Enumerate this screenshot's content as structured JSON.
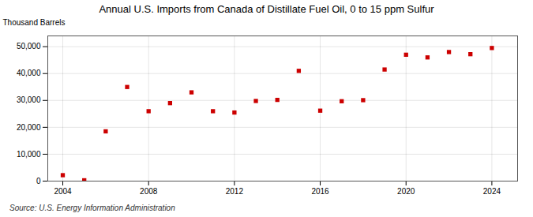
{
  "chart_data": {
    "type": "scatter",
    "title": "Annual U.S. Imports from Canada of Distillate Fuel Oil, 0 to 15 ppm Sulfur",
    "ylabel": "Thousand Barrels",
    "caption": "Source: U.S. Energy Information Administration",
    "x": [
      2004,
      2005,
      2006,
      2007,
      2008,
      2009,
      2010,
      2011,
      2012,
      2013,
      2014,
      2015,
      2016,
      2017,
      2018,
      2019,
      2020,
      2021,
      2022,
      2023,
      2024
    ],
    "values": [
      2200,
      300,
      18500,
      35000,
      26000,
      29000,
      33000,
      26000,
      25500,
      29800,
      30200,
      41000,
      26200,
      29700,
      30100,
      41500,
      47000,
      46000,
      48000,
      47200,
      49500
    ],
    "color": "#cc0000",
    "marker": "square",
    "xlim": [
      2003.3,
      2025.2
    ],
    "ylim": [
      0,
      54000
    ],
    "xticks": [
      2004,
      2008,
      2012,
      2016,
      2020,
      2024
    ],
    "yticks": [
      0,
      {
        "value": 10000,
        "label": "10,000"
      },
      {
        "value": 20000,
        "label": "20,000"
      },
      {
        "value": 30000,
        "label": "30,000"
      },
      {
        "value": 40000,
        "label": "40,000"
      },
      {
        "value": 50000,
        "label": "50,000"
      }
    ],
    "grid": true
  }
}
